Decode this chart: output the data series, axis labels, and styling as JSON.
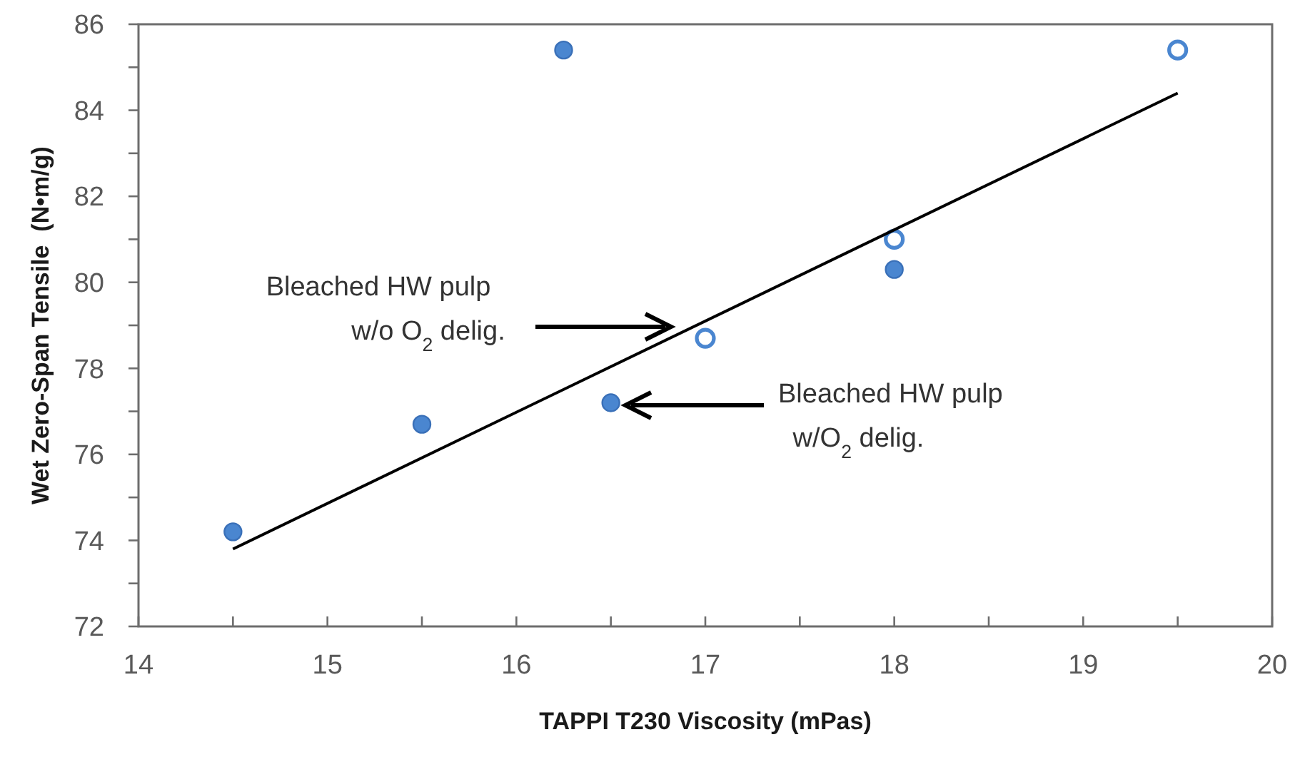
{
  "chart_data": {
    "type": "scatter",
    "xlabel": "TAPPI T230 Viscosity (mPas)",
    "ylabel": "Wet Zero-Span Tensile  (N•m/g)",
    "xlim": [
      14,
      20
    ],
    "ylim": [
      72,
      86
    ],
    "xticks": [
      14,
      {
        "value": 14.5,
        "label": null
      },
      15,
      {
        "value": 15.5,
        "label": null
      },
      16,
      {
        "value": 16.5,
        "label": null
      },
      17,
      {
        "value": 17.5,
        "label": null
      },
      18,
      {
        "value": 18.5,
        "label": null
      },
      19,
      {
        "value": 19.5,
        "label": null
      },
      20
    ],
    "yticks": [
      72,
      {
        "value": 73,
        "label": null
      },
      74,
      {
        "value": 75,
        "label": null
      },
      76,
      {
        "value": 77,
        "label": null
      },
      78,
      {
        "value": 79,
        "label": null
      },
      80,
      {
        "value": 81,
        "label": null
      },
      82,
      {
        "value": 83,
        "label": null
      },
      84,
      {
        "value": 85,
        "label": null
      },
      86
    ],
    "grid": false,
    "series": [
      {
        "color": "#4a86d0",
        "marker": "circle",
        "x": [
          14.5,
          15.5,
          16.25,
          16.5,
          18
        ],
        "values": [
          74.2,
          76.7,
          85.4,
          77.2,
          80.3
        ]
      },
      {
        "color": "#4a86d0",
        "marker": "circle",
        "x": [
          17,
          18,
          19.5
        ],
        "values": [
          78.7,
          81.0,
          85.4
        ]
      },
      {
        "type": "line",
        "color": "#000000",
        "x": [
          14.5,
          19.5
        ],
        "values": [
          73.8,
          84.4
        ]
      }
    ],
    "annotations": [
      "Bleached HW pulp\nw/o O$_{2}$ delig.",
      "Bleached HW pulp\n w/O$_{2}$ delig."
    ]
  }
}
